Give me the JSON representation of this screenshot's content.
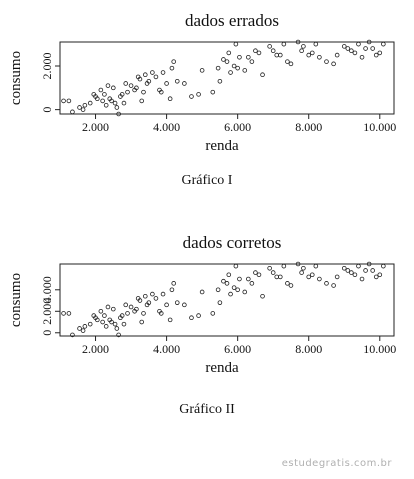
{
  "chart_data": [
    {
      "type": "scatter",
      "title": "dados errados",
      "xlabel": "renda",
      "ylabel": "consumo",
      "xlim": [
        1000,
        10400
      ],
      "ylim": [
        -200,
        3100
      ],
      "xticks": [
        2000,
        4000,
        6000,
        8000,
        10000
      ],
      "xtick_labels": [
        "2.000",
        "4.000",
        "6.000",
        "8.000",
        "10.000"
      ],
      "yticks": [
        0,
        2000
      ],
      "ytick_labels": [
        "0",
        "2.000"
      ],
      "grid": false,
      "x": [
        1100,
        1250,
        1350,
        1550,
        1650,
        1700,
        1850,
        1950,
        2000,
        2050,
        2150,
        2200,
        2250,
        2300,
        2350,
        2400,
        2450,
        2500,
        2550,
        2600,
        2650,
        2700,
        2750,
        2800,
        2850,
        2900,
        3000,
        3100,
        3150,
        3200,
        3250,
        3300,
        3350,
        3400,
        3450,
        3500,
        3600,
        3700,
        3800,
        3850,
        3900,
        4000,
        4100,
        4150,
        4200,
        4300,
        4500,
        4700,
        4900,
        5000,
        5300,
        5450,
        5500,
        5600,
        5700,
        5750,
        5800,
        5900,
        5950,
        6000,
        6050,
        6200,
        6300,
        6400,
        6500,
        6600,
        6700,
        6900,
        7000,
        7100,
        7200,
        7300,
        7400,
        7500,
        7700,
        7800,
        7850,
        8000,
        8100,
        8200,
        8300,
        8500,
        8700,
        8800,
        9000,
        9100,
        9200,
        9300,
        9400,
        9500,
        9600,
        9700,
        9800,
        9900,
        10000,
        10100
      ],
      "y": [
        400,
        400,
        -100,
        100,
        0,
        200,
        300,
        700,
        600,
        500,
        900,
        400,
        700,
        200,
        1100,
        500,
        400,
        1000,
        300,
        100,
        -200,
        600,
        700,
        300,
        1200,
        800,
        1100,
        900,
        1000,
        1500,
        1400,
        400,
        800,
        1600,
        1200,
        1300,
        1700,
        1500,
        900,
        800,
        1700,
        1200,
        500,
        1900,
        2200,
        1300,
        1200,
        600,
        700,
        1800,
        800,
        1900,
        1300,
        2300,
        2200,
        2600,
        1700,
        2000,
        3000,
        1900,
        2400,
        1800,
        2400,
        2200,
        2700,
        2600,
        1600,
        2900,
        2700,
        2500,
        2500,
        3000,
        2200,
        2100,
        3100,
        2700,
        2900,
        2500,
        2600,
        3000,
        2400,
        2200,
        2100,
        2500,
        2900,
        2800,
        2700,
        2600,
        3000,
        2400,
        2800,
        3100,
        2800,
        2500,
        2600,
        3000
      ]
    },
    {
      "type": "scatter",
      "title": "dados corretos",
      "xlabel": "renda",
      "ylabel": "consumo",
      "xlim": [
        1000,
        10400
      ],
      "ylim": [
        -300,
        6400
      ],
      "xticks": [
        2000,
        4000,
        6000,
        8000,
        10000
      ],
      "xtick_labels": [
        "2.000",
        "4.000",
        "6.000",
        "8.000",
        "10.000"
      ],
      "yticks": [
        0,
        2000,
        4000
      ],
      "ytick_labels": [
        "0",
        "2.000",
        "4.000"
      ],
      "grid": false,
      "x": [
        1100,
        1250,
        1350,
        1550,
        1650,
        1700,
        1850,
        1950,
        2000,
        2050,
        2150,
        2200,
        2250,
        2300,
        2350,
        2400,
        2450,
        2500,
        2550,
        2600,
        2650,
        2700,
        2750,
        2800,
        2850,
        2900,
        3000,
        3100,
        3150,
        3200,
        3250,
        3300,
        3350,
        3400,
        3450,
        3500,
        3600,
        3700,
        3800,
        3850,
        3900,
        4000,
        4100,
        4150,
        4200,
        4300,
        4500,
        4700,
        4900,
        5000,
        5300,
        5450,
        5500,
        5600,
        5700,
        5750,
        5800,
        5900,
        5950,
        6000,
        6050,
        6200,
        6300,
        6400,
        6500,
        6600,
        6700,
        6900,
        7000,
        7100,
        7200,
        7300,
        7400,
        7500,
        7700,
        7800,
        7850,
        8000,
        8100,
        8200,
        8300,
        8500,
        8700,
        8800,
        9000,
        9100,
        9200,
        9300,
        9400,
        9500,
        9600,
        9700,
        9800,
        9900,
        10000,
        10100
      ],
      "y": [
        1800,
        1800,
        -200,
        400,
        200,
        600,
        800,
        1600,
        1400,
        1200,
        2000,
        1000,
        1600,
        600,
        2400,
        1200,
        1000,
        2200,
        800,
        400,
        -200,
        1400,
        1600,
        800,
        2600,
        1800,
        2400,
        2000,
        2200,
        3200,
        3000,
        1000,
        1800,
        3400,
        2600,
        2800,
        3600,
        3200,
        2000,
        1800,
        3600,
        2600,
        1200,
        4000,
        4600,
        2800,
        2600,
        1400,
        1600,
        3800,
        1800,
        4000,
        2800,
        4800,
        4600,
        5400,
        3600,
        4200,
        6200,
        4000,
        5000,
        3800,
        5000,
        4600,
        5600,
        5400,
        3400,
        6000,
        5600,
        5200,
        5200,
        6200,
        4600,
        4400,
        6400,
        5600,
        6000,
        5200,
        5400,
        6200,
        5000,
        4600,
        4400,
        5200,
        6000,
        5800,
        5600,
        5400,
        6200,
        5000,
        5800,
        6400,
        5800,
        5200,
        5400,
        6200
      ]
    }
  ],
  "captions": {
    "first": "Gráfico I",
    "second": "Gráfico II"
  },
  "watermark": "estudegratis.com.br"
}
